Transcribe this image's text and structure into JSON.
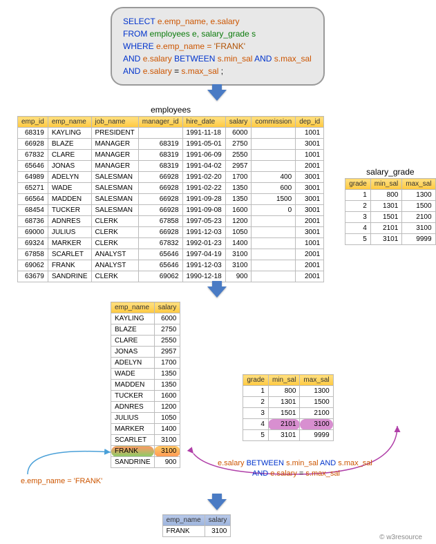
{
  "sql": {
    "line1": {
      "select": "SELECT",
      "cols": "e.emp_name, e.salary"
    },
    "line2": {
      "from": "FROM",
      "tables": "employees e, salary_grade s"
    },
    "line3": {
      "where": "WHERE",
      "cond": "e.emp_name = ",
      "val": "'FRANK'"
    },
    "line4": {
      "and": "AND",
      "c1": "e.salary",
      "bt": "BETWEEN",
      "c2": "s.min_sal",
      "a2": "AND",
      "c3": "s.max_sal"
    },
    "line5": {
      "and": "AND",
      "c1": "e.salary",
      "eq": "=",
      "c2": "s.max_sal",
      "semi": ";"
    }
  },
  "employees": {
    "title": "employees",
    "headers": [
      "emp_id",
      "emp_name",
      "job_name",
      "manager_id",
      "hire_date",
      "salary",
      "commission",
      "dep_id"
    ],
    "rows": [
      [
        "68319",
        "KAYLING",
        "PRESIDENT",
        "",
        "1991-11-18",
        "6000",
        "",
        "1001"
      ],
      [
        "66928",
        "BLAZE",
        "MANAGER",
        "68319",
        "1991-05-01",
        "2750",
        "",
        "3001"
      ],
      [
        "67832",
        "CLARE",
        "MANAGER",
        "68319",
        "1991-06-09",
        "2550",
        "",
        "1001"
      ],
      [
        "65646",
        "JONAS",
        "MANAGER",
        "68319",
        "1991-04-02",
        "2957",
        "",
        "2001"
      ],
      [
        "64989",
        "ADELYN",
        "SALESMAN",
        "66928",
        "1991-02-20",
        "1700",
        "400",
        "3001"
      ],
      [
        "65271",
        "WADE",
        "SALESMAN",
        "66928",
        "1991-02-22",
        "1350",
        "600",
        "3001"
      ],
      [
        "66564",
        "MADDEN",
        "SALESMAN",
        "66928",
        "1991-09-28",
        "1350",
        "1500",
        "3001"
      ],
      [
        "68454",
        "TUCKER",
        "SALESMAN",
        "66928",
        "1991-09-08",
        "1600",
        "0",
        "3001"
      ],
      [
        "68736",
        "ADNRES",
        "CLERK",
        "67858",
        "1997-05-23",
        "1200",
        "",
        "2001"
      ],
      [
        "69000",
        "JULIUS",
        "CLERK",
        "66928",
        "1991-12-03",
        "1050",
        "",
        "3001"
      ],
      [
        "69324",
        "MARKER",
        "CLERK",
        "67832",
        "1992-01-23",
        "1400",
        "",
        "1001"
      ],
      [
        "67858",
        "SCARLET",
        "ANALYST",
        "65646",
        "1997-04-19",
        "3100",
        "",
        "2001"
      ],
      [
        "69062",
        "FRANK",
        "ANALYST",
        "65646",
        "1991-12-03",
        "3100",
        "",
        "2001"
      ],
      [
        "63679",
        "SANDRINE",
        "CLERK",
        "69062",
        "1990-12-18",
        "900",
        "",
        "2001"
      ]
    ],
    "numeric_cols": [
      0,
      3,
      5,
      6,
      7
    ]
  },
  "salary_grade": {
    "title": "salary_grade",
    "headers": [
      "grade",
      "min_sal",
      "max_sal"
    ],
    "rows": [
      [
        "1",
        "800",
        "1300"
      ],
      [
        "2",
        "1301",
        "1500"
      ],
      [
        "3",
        "1501",
        "2100"
      ],
      [
        "4",
        "2101",
        "3100"
      ],
      [
        "5",
        "3101",
        "9999"
      ]
    ]
  },
  "emp_sal": {
    "headers": [
      "emp_name",
      "salary"
    ],
    "rows": [
      [
        "KAYLING",
        "6000"
      ],
      [
        "BLAZE",
        "2750"
      ],
      [
        "CLARE",
        "2550"
      ],
      [
        "JONAS",
        "2957"
      ],
      [
        "ADELYN",
        "1700"
      ],
      [
        "WADE",
        "1350"
      ],
      [
        "MADDEN",
        "1350"
      ],
      [
        "TUCKER",
        "1600"
      ],
      [
        "ADNRES",
        "1200"
      ],
      [
        "JULIUS",
        "1050"
      ],
      [
        "MARKER",
        "1400"
      ],
      [
        "SCARLET",
        "3100"
      ],
      [
        "FRANK",
        "3100"
      ],
      [
        "SANDRINE",
        "900"
      ]
    ],
    "highlight_row": 12
  },
  "grade2": {
    "headers": [
      "grade",
      "min_sal",
      "max_sal"
    ],
    "rows": [
      [
        "1",
        "800",
        "1300"
      ],
      [
        "2",
        "1301",
        "1500"
      ],
      [
        "3",
        "1501",
        "2100"
      ],
      [
        "4",
        "2101",
        "3100"
      ],
      [
        "5",
        "3101",
        "9999"
      ]
    ],
    "highlight_row": 3
  },
  "result": {
    "headers": [
      "emp_name",
      "salary"
    ],
    "rows": [
      [
        "FRANK",
        "3100"
      ]
    ]
  },
  "annotations": {
    "frank": {
      "text": "e.emp_name = 'FRANK'",
      "color": "#cc5500"
    },
    "between": {
      "p1": "e.salary",
      "kw": "BETWEEN",
      "p2": "s.min_sal",
      "a": "AND",
      "p3": "s.max_sal"
    },
    "eq": {
      "a": "AND",
      "p1": "e.salary",
      "e": "=",
      "p2": "s.max_sal"
    }
  },
  "footer": "© w3resource"
}
